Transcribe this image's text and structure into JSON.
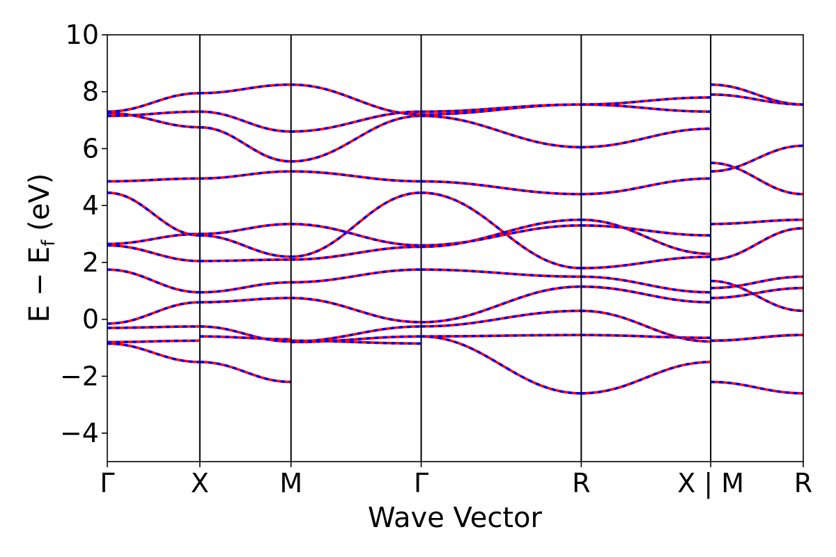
{
  "chart_data": {
    "type": "line",
    "xlabel": "Wave Vector",
    "ylabel_main": "E − E",
    "ylabel_sub": "f",
    "ylabel_unit": " (eV)",
    "ylim": [
      -5,
      10
    ],
    "yticks": [
      "−4",
      "−2",
      "0",
      "2",
      "4",
      "6",
      "8",
      "10"
    ],
    "ytick_values": [
      -4,
      -2,
      0,
      2,
      4,
      6,
      8,
      10
    ],
    "xlim": [
      0,
      1
    ],
    "kpath": [
      {
        "label": "Γ",
        "x": 0.0
      },
      {
        "label": "X",
        "x": 0.133
      },
      {
        "label": "M",
        "x": 0.264
      },
      {
        "label": "Γ",
        "x": 0.451
      },
      {
        "label": "R",
        "x": 0.681
      },
      {
        "label": "X | M",
        "x": 0.867
      },
      {
        "label": "R",
        "x": 1.0
      }
    ],
    "grid": false,
    "series_style": [
      {
        "color": "#ff0000",
        "dash": "solid"
      },
      {
        "color": "#0000ff",
        "dash": "dashed"
      }
    ],
    "bands_segment_values": [
      [
        [
          -0.8,
          -0.75
        ],
        [
          -0.6,
          -0.7
        ],
        [
          -0.75,
          -0.85
        ],
        [
          -0.6,
          -0.55
        ],
        [
          -0.55,
          -0.65
        ],
        [
          -0.75,
          -0.55
        ]
      ],
      [
        [
          -0.85,
          -1.5
        ],
        [
          -1.5,
          -2.2
        ],
        [
          -0.8,
          -0.6
        ],
        [
          -0.6,
          -2.6
        ],
        [
          -2.6,
          -1.5
        ],
        [
          -2.2,
          -2.6
        ]
      ],
      [
        [
          -0.3,
          -0.25
        ],
        [
          -0.25,
          -0.78
        ],
        [
          -0.78,
          -0.25
        ],
        [
          -0.25,
          0.3
        ],
        [
          0.3,
          -0.78
        ],
        [
          -0.75,
          -0.55
        ]
      ],
      [
        [
          -0.15,
          0.6
        ],
        [
          0.6,
          0.75
        ],
        [
          0.75,
          -0.1
        ],
        [
          -0.1,
          1.15
        ],
        [
          1.15,
          0.6
        ],
        [
          0.75,
          1.1
        ]
      ],
      [
        [
          1.75,
          0.95
        ],
        [
          0.95,
          1.3
        ],
        [
          1.3,
          1.75
        ],
        [
          1.75,
          1.5
        ],
        [
          1.5,
          0.95
        ],
        [
          1.1,
          1.5
        ]
      ],
      [
        [
          2.6,
          2.05
        ],
        [
          2.05,
          2.1
        ],
        [
          2.1,
          2.55
        ],
        [
          2.55,
          3.5
        ],
        [
          3.5,
          2.3
        ],
        [
          1.35,
          0.3
        ]
      ],
      [
        [
          2.65,
          3.0
        ],
        [
          3.0,
          3.35
        ],
        [
          3.35,
          2.6
        ],
        [
          2.6,
          3.3
        ],
        [
          3.3,
          2.95
        ],
        [
          2.1,
          3.2
        ]
      ],
      [
        [
          4.45,
          2.95
        ],
        [
          2.95,
          2.2
        ],
        [
          2.2,
          4.45
        ],
        [
          4.45,
          1.8
        ],
        [
          1.8,
          2.2
        ],
        [
          3.35,
          3.5
        ]
      ],
      [
        [
          4.85,
          4.95
        ],
        [
          4.95,
          5.2
        ],
        [
          5.2,
          4.85
        ],
        [
          4.85,
          4.4
        ],
        [
          4.4,
          4.95
        ],
        [
          5.5,
          4.4
        ]
      ],
      [
        [
          7.25,
          6.75
        ],
        [
          6.75,
          5.55
        ],
        [
          5.55,
          7.15
        ],
        [
          7.15,
          6.05
        ],
        [
          6.05,
          6.7
        ],
        [
          5.2,
          6.1
        ]
      ],
      [
        [
          7.15,
          7.3
        ],
        [
          7.3,
          6.6
        ],
        [
          6.6,
          7.3
        ],
        [
          7.3,
          7.55
        ],
        [
          7.55,
          7.8
        ],
        [
          7.9,
          7.55
        ]
      ],
      [
        [
          7.3,
          7.95
        ],
        [
          7.95,
          8.25
        ],
        [
          8.25,
          7.2
        ],
        [
          7.2,
          7.55
        ],
        [
          7.55,
          7.3
        ],
        [
          8.25,
          7.55
        ]
      ]
    ]
  }
}
